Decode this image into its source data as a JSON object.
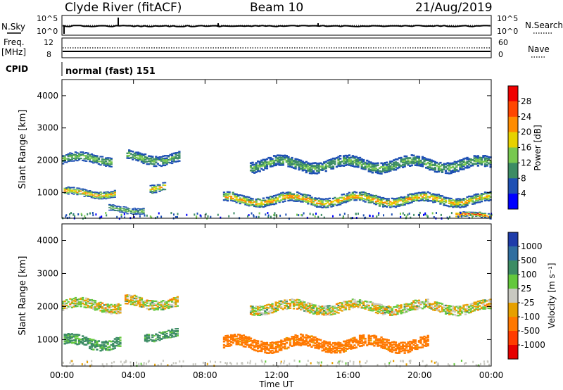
{
  "header": {
    "station": "Clyde River (fitACF)",
    "beam": "Beam 10",
    "date": "21/Aug/2019"
  },
  "top_panels": {
    "nsky_label": "N.Sky",
    "nsky_ticks": [
      "10^5",
      "10^0"
    ],
    "nsearch_label": "N.Search",
    "nsearch_ticks": [
      "10^5",
      "10^0"
    ],
    "freq_label_1": "Freq.",
    "freq_label_2": "[MHz]",
    "freq_ticks": [
      "12",
      "8"
    ],
    "nave_label": "Nave",
    "nave_ticks": [
      "60",
      "0"
    ],
    "cpid_label": "CPID",
    "cpid_text": "normal (fast) 151"
  },
  "power_panel": {
    "ylabel": "Slant Range [km]",
    "y_ticks": [
      "4000",
      "3000",
      "2000",
      "1000"
    ],
    "colorbar_label": "Power [dB]",
    "colorbar_ticks": [
      "28",
      "24",
      "20",
      "16",
      "12",
      "8",
      "4"
    ],
    "colors": [
      "#0000ff",
      "#1e50b4",
      "#3c8c64",
      "#78c850",
      "#e6d200",
      "#ff8c00",
      "#ff4600",
      "#f00000"
    ]
  },
  "velocity_panel": {
    "ylabel": "Slant Range [km]",
    "y_ticks": [
      "4000",
      "3000",
      "2000",
      "1000"
    ],
    "colorbar_label": "Velocity  [m s⁻¹]",
    "colorbar_ticks": [
      "1000",
      "500",
      "100",
      "25",
      "-25",
      "-100",
      "-500",
      "-1000"
    ],
    "colors": [
      "#1e3caa",
      "#2f6ea0",
      "#3c8c64",
      "#64c83c",
      "#c8c8c0",
      "#e6a000",
      "#ff7800",
      "#ff3c00",
      "#e60000"
    ]
  },
  "x_axis": {
    "ticks": [
      "00:00",
      "04:00",
      "08:00",
      "12:00",
      "16:00",
      "20:00",
      "00:00"
    ],
    "label": "Time UT"
  },
  "chart_data": [
    {
      "type": "heatmap",
      "title": "Power [dB]",
      "xlabel": "Time UT",
      "ylabel": "Slant Range [km]",
      "xlim_hours": [
        0,
        24
      ],
      "ylim": [
        200,
        4500
      ],
      "scale": [
        0,
        30
      ],
      "bands": [
        {
          "t0": 0.0,
          "t1": 2.8,
          "r_center": 2050,
          "width": 280,
          "peak": 16
        },
        {
          "t0": 0.1,
          "t1": 3.0,
          "r_center": 1000,
          "width": 220,
          "peak": 24
        },
        {
          "t0": 3.6,
          "t1": 6.6,
          "r_center": 2100,
          "width": 320,
          "peak": 14
        },
        {
          "t0": 4.9,
          "t1": 5.8,
          "r_center": 1200,
          "width": 250,
          "peak": 24
        },
        {
          "t0": 2.6,
          "t1": 4.6,
          "r_center": 500,
          "width": 200,
          "peak": 14
        },
        {
          "t0": 9.0,
          "t1": 24.0,
          "r_center": 800,
          "width": 300,
          "peak": 24
        },
        {
          "t0": 10.5,
          "t1": 24.0,
          "r_center": 1900,
          "width": 350,
          "peak": 14
        },
        {
          "t0": 22.0,
          "t1": 24.0,
          "r_center": 300,
          "width": 150,
          "peak": 30
        }
      ]
    },
    {
      "type": "heatmap",
      "title": "Velocity [m s-1]",
      "xlabel": "Time UT",
      "ylabel": "Slant Range [km]",
      "xlim_hours": [
        0,
        24
      ],
      "ylim": [
        200,
        4500
      ],
      "scale": [
        -1000,
        1000
      ],
      "bands": [
        {
          "t0": 0.0,
          "t1": 3.3,
          "r_center": 2050,
          "width": 300,
          "value": 0
        },
        {
          "t0": 0.1,
          "t1": 3.3,
          "r_center": 950,
          "width": 320,
          "value": 150
        },
        {
          "t0": 3.5,
          "t1": 6.5,
          "r_center": 2150,
          "width": 300,
          "value": 0
        },
        {
          "t0": 4.6,
          "t1": 6.5,
          "r_center": 1150,
          "width": 250,
          "value": 150
        },
        {
          "t0": 9.0,
          "t1": 20.5,
          "r_center": 900,
          "width": 350,
          "value": -200
        },
        {
          "t0": 10.5,
          "t1": 24.0,
          "r_center": 2000,
          "width": 300,
          "value": 0
        }
      ]
    }
  ]
}
